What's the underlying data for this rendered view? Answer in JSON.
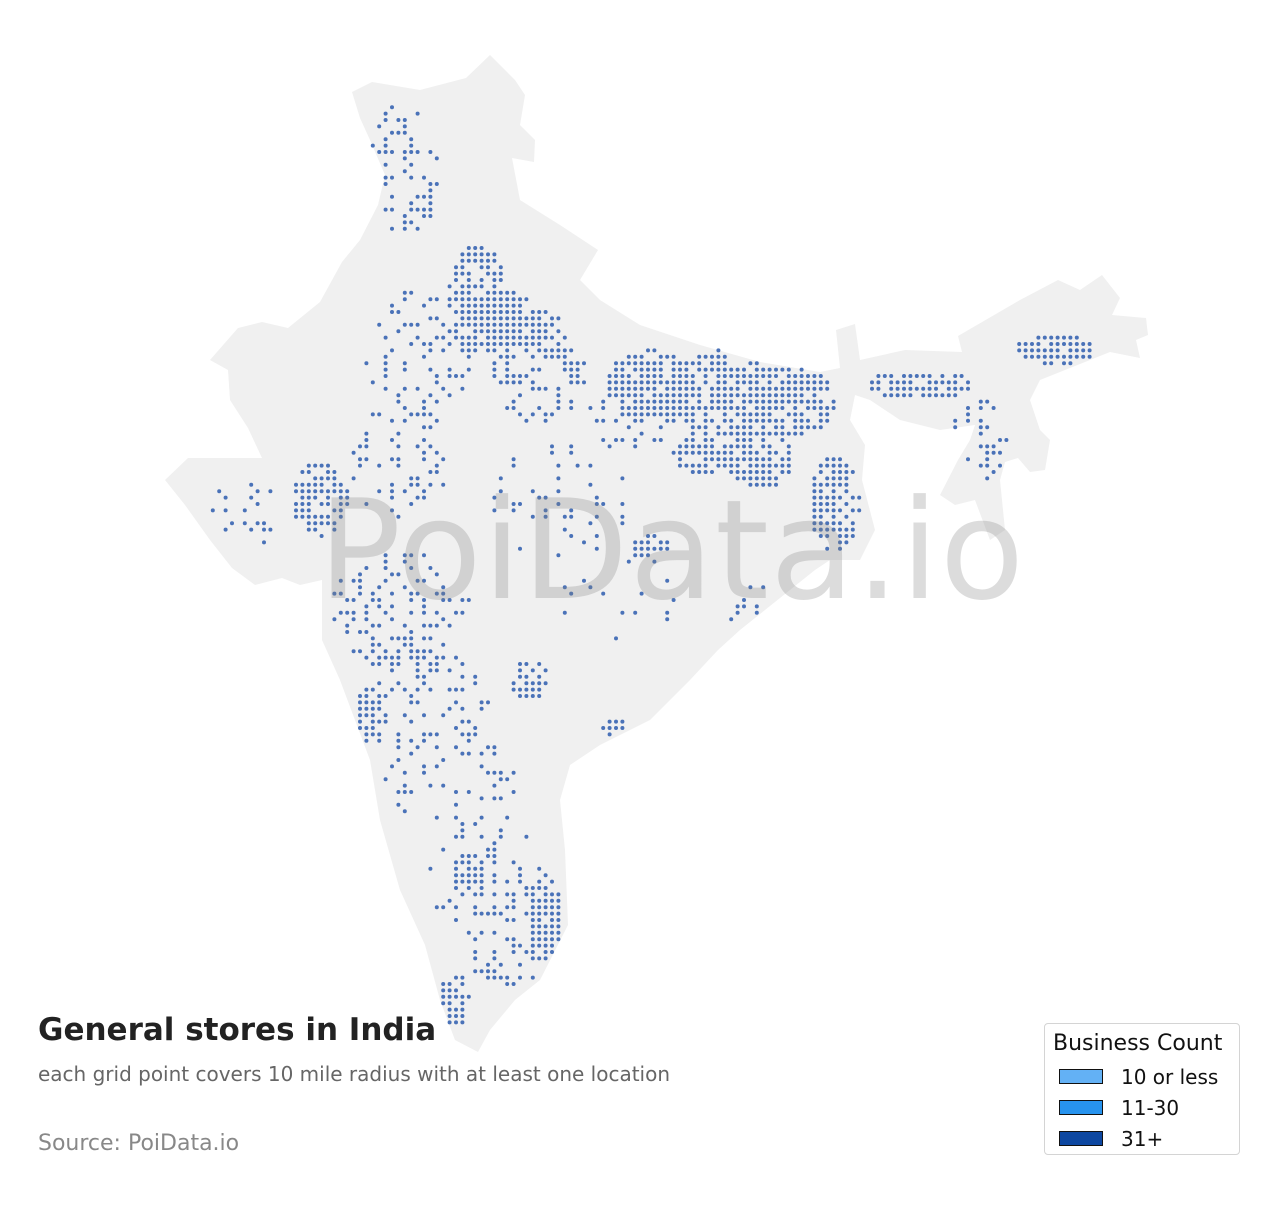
{
  "title": "General stores in India",
  "subtitle": "each grid point covers 10 mile radius with at least one location",
  "source": "Source: PoiData.io",
  "watermark": "PoiData.io",
  "colors": {
    "land": "#f0f0f0",
    "point": "#4a72b8"
  },
  "legend": {
    "title": "Business Count",
    "items": [
      {
        "label": "10 or less",
        "color": "#63b1f5"
      },
      {
        "label": "11-30",
        "color": "#2793ee"
      },
      {
        "label": "31+",
        "color": "#0d47a1"
      }
    ]
  }
}
